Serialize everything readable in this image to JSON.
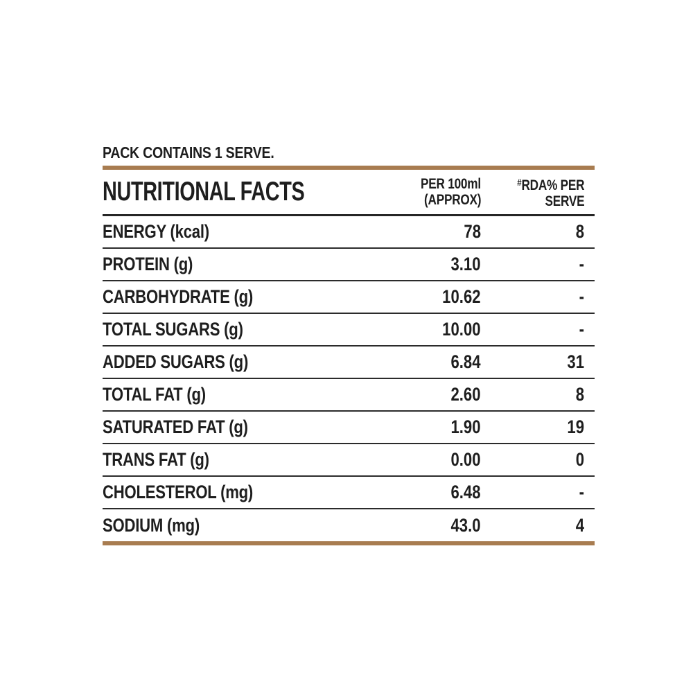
{
  "colors": {
    "accent_brown": "#a87c50",
    "text": "#1e1e1e",
    "line": "#2b2b2b",
    "background": "#ffffff"
  },
  "pack_note": "PACK CONTAINS 1 SERVE.",
  "table": {
    "title": "NUTRITIONAL FACTS",
    "col_per_100ml": {
      "line1": "PER 100ml",
      "line2": "(APPROX)"
    },
    "col_rda": {
      "hash": "#",
      "line1": "RDA% PER",
      "line2": "SERVE"
    },
    "rows": [
      {
        "label": "ENERGY (kcal)",
        "per_100ml": "78",
        "rda_per_serve": "8"
      },
      {
        "label": "PROTEIN (g)",
        "per_100ml": "3.10",
        "rda_per_serve": "-"
      },
      {
        "label": "CARBOHYDRATE (g)",
        "per_100ml": "10.62",
        "rda_per_serve": "-"
      },
      {
        "label": "TOTAL SUGARS (g)",
        "per_100ml": "10.00",
        "rda_per_serve": "-"
      },
      {
        "label": "ADDED SUGARS (g)",
        "per_100ml": "6.84",
        "rda_per_serve": "31"
      },
      {
        "label": "TOTAL FAT (g)",
        "per_100ml": "2.60",
        "rda_per_serve": "8"
      },
      {
        "label": "SATURATED FAT (g)",
        "per_100ml": "1.90",
        "rda_per_serve": "19"
      },
      {
        "label": "TRANS FAT (g)",
        "per_100ml": "0.00",
        "rda_per_serve": "0"
      },
      {
        "label": "CHOLESTEROL (mg)",
        "per_100ml": "6.48",
        "rda_per_serve": "-"
      },
      {
        "label": "SODIUM (mg)",
        "per_100ml": "43.0",
        "rda_per_serve": "4"
      }
    ]
  }
}
